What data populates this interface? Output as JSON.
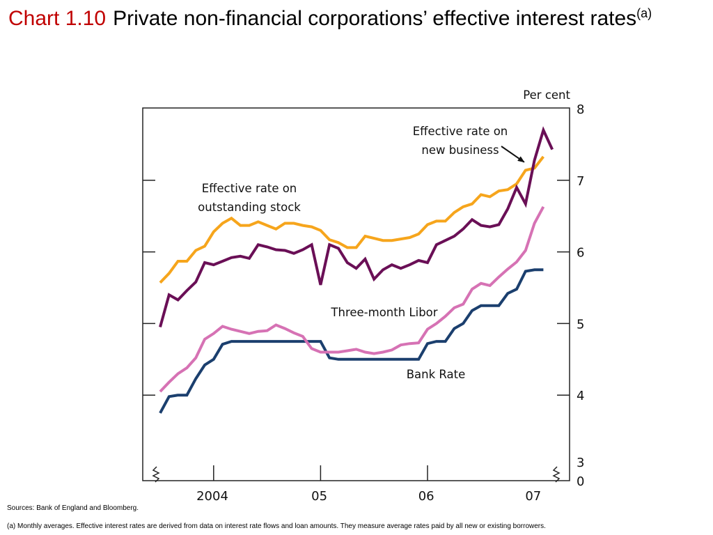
{
  "title": {
    "chart_number": "Chart 1.10",
    "text": "Private non-financial corporations’ effective interest rates",
    "superscript": "(a)"
  },
  "sources": "Sources:  Bank of England and Bloomberg.",
  "footnote": "(a)  Monthly averages.  Effective interest rates are derived from data on interest rate flows and loan amounts.  They measure average rates paid by all new or existing borrowers.",
  "colors": {
    "new_business": "#6a0f56",
    "outstanding_stock": "#f6a51c",
    "libor": "#d672b4",
    "bank_rate": "#1b3f6e",
    "axis": "#222222"
  },
  "chart_data": {
    "type": "line",
    "title": "Private non-financial corporations’ effective interest rates",
    "ylabel": "Per cent",
    "ylim": [
      3,
      8
    ],
    "y_ticks": [
      "3",
      "4",
      "5",
      "6",
      "7",
      "8"
    ],
    "y_break_label": "0",
    "y_axis_side": "right",
    "x_ticks": [
      {
        "label": "2004",
        "month_index": 0
      },
      {
        "label": "05",
        "month_index": 12
      },
      {
        "label": "06",
        "month_index": 24
      },
      {
        "label": "07",
        "month_index": 36
      }
    ],
    "x_range_months": [
      -1,
      44
    ],
    "grid": false,
    "series": [
      {
        "name": "Effective rate on new business",
        "label_lines": [
          "Effective rate on",
          "new business"
        ],
        "color_key": "new_business",
        "values": [
          4.95,
          5.4,
          5.33,
          5.46,
          5.58,
          5.85,
          5.82,
          5.87,
          5.92,
          5.94,
          5.91,
          6.1,
          6.07,
          6.03,
          6.02,
          5.98,
          6.03,
          6.1,
          5.54,
          6.1,
          6.05,
          5.85,
          5.77,
          5.9,
          5.62,
          5.75,
          5.82,
          5.77,
          5.82,
          5.88,
          5.85,
          6.1,
          6.16,
          6.22,
          6.32,
          6.45,
          6.37,
          6.35,
          6.38,
          6.6,
          6.9,
          6.67,
          7.28,
          7.7,
          7.43
        ]
      },
      {
        "name": "Effective rate on outstanding stock",
        "label_lines": [
          "Effective rate on",
          "outstanding stock"
        ],
        "color_key": "outstanding_stock",
        "values": [
          5.57,
          5.7,
          5.87,
          5.87,
          6.02,
          6.08,
          6.28,
          6.4,
          6.47,
          6.37,
          6.37,
          6.42,
          6.37,
          6.32,
          6.4,
          6.4,
          6.37,
          6.35,
          6.3,
          6.17,
          6.13,
          6.06,
          6.06,
          6.22,
          6.19,
          6.16,
          6.16,
          6.18,
          6.2,
          6.25,
          6.38,
          6.43,
          6.43,
          6.55,
          6.63,
          6.67,
          6.8,
          6.77,
          6.85,
          6.87,
          6.95,
          7.14,
          7.17,
          7.33
        ]
      },
      {
        "name": "Three-month Libor",
        "label_lines": [
          "Three-month Libor"
        ],
        "color_key": "libor",
        "values": [
          4.05,
          4.18,
          4.3,
          4.38,
          4.52,
          4.78,
          4.86,
          4.96,
          4.92,
          4.89,
          4.86,
          4.89,
          4.9,
          4.98,
          4.93,
          4.87,
          4.82,
          4.65,
          4.6,
          4.6,
          4.6,
          4.62,
          4.64,
          4.6,
          4.58,
          4.6,
          4.63,
          4.7,
          4.72,
          4.73,
          4.92,
          5.0,
          5.1,
          5.22,
          5.27,
          5.48,
          5.56,
          5.53,
          5.65,
          5.76,
          5.86,
          6.02,
          6.4,
          6.63
        ]
      },
      {
        "name": "Bank Rate",
        "label_lines": [
          "Bank Rate"
        ],
        "color_key": "bank_rate",
        "values": [
          3.75,
          3.98,
          4.0,
          4.0,
          4.23,
          4.42,
          4.5,
          4.71,
          4.75,
          4.75,
          4.75,
          4.75,
          4.75,
          4.75,
          4.75,
          4.75,
          4.75,
          4.75,
          4.75,
          4.52,
          4.5,
          4.5,
          4.5,
          4.5,
          4.5,
          4.5,
          4.5,
          4.5,
          4.5,
          4.5,
          4.72,
          4.75,
          4.75,
          4.93,
          5.0,
          5.18,
          5.25,
          5.25,
          5.25,
          5.42,
          5.48,
          5.73,
          5.75,
          5.75
        ]
      }
    ],
    "annotations": [
      {
        "series": "Effective rate on new business",
        "arrow_to_month_index": 41
      }
    ]
  }
}
